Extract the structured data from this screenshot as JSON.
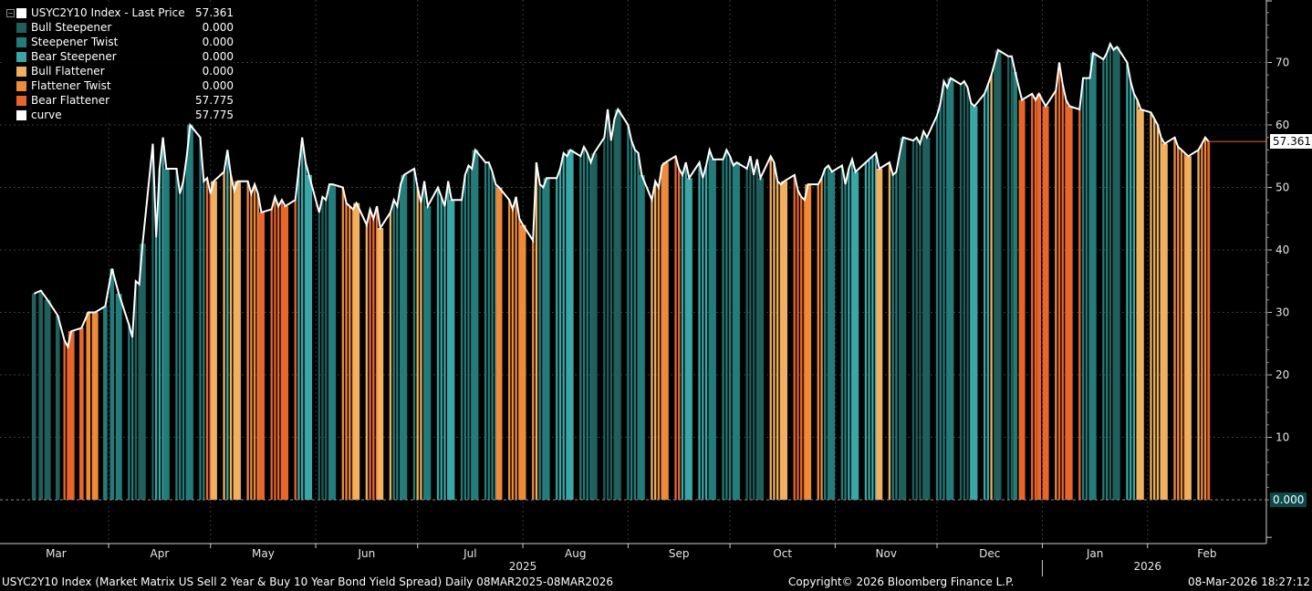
{
  "legend": {
    "title": "USYC2Y10 Index - Last Price",
    "title_value": "57.361",
    "items": [
      {
        "name": "Bull Steepener",
        "value": "0.000",
        "color": "#1f5f5c"
      },
      {
        "name": "Steepener Twist",
        "value": "0.000",
        "color": "#237c7a"
      },
      {
        "name": "Bear Steepener",
        "value": "0.000",
        "color": "#3aa6a6"
      },
      {
        "name": "Bull Flattener",
        "value": "0.000",
        "color": "#f0b060"
      },
      {
        "name": "Flattener Twist",
        "value": "0.000",
        "color": "#ee8a3a"
      },
      {
        "name": "Bear Flattener",
        "value": "57.775",
        "color": "#e8662a"
      },
      {
        "name": "curve",
        "value": "57.775",
        "color": "#ffffff"
      }
    ]
  },
  "price_tags": {
    "last": "57.361",
    "zero": "0.000"
  },
  "footer": {
    "left": "USYC2Y10 Index (Market Matrix US Sell 2 Year & Buy 10 Year Bond Yield Spread) Daily 08MAR2025-08MAR2026",
    "center": "Copyright© 2026 Bloomberg Finance L.P.",
    "right": "08-Mar-2026 18:27:12"
  },
  "chart_data": {
    "type": "bar",
    "ylim": [
      -7,
      80
    ],
    "y_ticks": [
      10,
      20,
      30,
      40,
      50,
      60,
      70
    ],
    "months": [
      "Mar",
      "Apr",
      "May",
      "Jun",
      "Jul",
      "Aug",
      "Sep",
      "Oct",
      "Nov",
      "Dec",
      "Jan",
      "Feb"
    ],
    "year_labels": [
      "2025",
      "2026"
    ],
    "regime_colors": {
      "A": "#1f5f5c",
      "B": "#237c7a",
      "C": "#3aa6a6",
      "D": "#f0b060",
      "E": "#ee8a3a",
      "F": "#e8662a"
    },
    "curve_points": [
      [
        "2025-03-10",
        33.0
      ],
      [
        "2025-03-12",
        33.5
      ],
      [
        "2025-03-14",
        32.0
      ],
      [
        "2025-03-17",
        29.5
      ],
      [
        "2025-03-19",
        25.5
      ],
      [
        "2025-03-20",
        24.5
      ],
      [
        "2025-03-21",
        27.0
      ],
      [
        "2025-03-24",
        27.5
      ],
      [
        "2025-03-26",
        30.0
      ],
      [
        "2025-03-28",
        30.0
      ],
      [
        "2025-03-31",
        31.0
      ],
      [
        "2025-04-02",
        37.0
      ],
      [
        "2025-04-04",
        33.0
      ],
      [
        "2025-04-07",
        28.0
      ],
      [
        "2025-04-08",
        26.0
      ],
      [
        "2025-04-09",
        35.0
      ],
      [
        "2025-04-10",
        34.5
      ],
      [
        "2025-04-11",
        41.0
      ],
      [
        "2025-04-14",
        57.0
      ],
      [
        "2025-04-15",
        42.0
      ],
      [
        "2025-04-16",
        53.0
      ],
      [
        "2025-04-17",
        58.0
      ],
      [
        "2025-04-18",
        53.0
      ],
      [
        "2025-04-21",
        53.0
      ],
      [
        "2025-04-22",
        49.0
      ],
      [
        "2025-04-23",
        51.0
      ],
      [
        "2025-04-24",
        55.0
      ],
      [
        "2025-04-25",
        60.0
      ],
      [
        "2025-04-28",
        58.0
      ],
      [
        "2025-04-29",
        51.0
      ],
      [
        "2025-04-30",
        51.5
      ],
      [
        "2025-05-01",
        49.0
      ],
      [
        "2025-05-02",
        51.0
      ],
      [
        "2025-05-05",
        52.5
      ],
      [
        "2025-05-06",
        56.0
      ],
      [
        "2025-05-07",
        52.0
      ],
      [
        "2025-05-08",
        49.5
      ],
      [
        "2025-05-09",
        51.0
      ],
      [
        "2025-05-12",
        51.0
      ],
      [
        "2025-05-13",
        49.0
      ],
      [
        "2025-05-14",
        50.5
      ],
      [
        "2025-05-15",
        49.0
      ],
      [
        "2025-05-16",
        46.0
      ],
      [
        "2025-05-19",
        46.5
      ],
      [
        "2025-05-20",
        48.5
      ],
      [
        "2025-05-21",
        47.0
      ],
      [
        "2025-05-22",
        48.0
      ],
      [
        "2025-05-23",
        47.0
      ],
      [
        "2025-05-26",
        48.0
      ],
      [
        "2025-05-27",
        53.0
      ],
      [
        "2025-05-28",
        58.0
      ],
      [
        "2025-05-29",
        54.0
      ],
      [
        "2025-05-30",
        52.0
      ],
      [
        "2025-06-02",
        46.0
      ],
      [
        "2025-06-03",
        48.5
      ],
      [
        "2025-06-04",
        48.0
      ],
      [
        "2025-06-05",
        50.5
      ],
      [
        "2025-06-06",
        50.5
      ],
      [
        "2025-06-09",
        50.0
      ],
      [
        "2025-06-10",
        47.5
      ],
      [
        "2025-06-11",
        47.0
      ],
      [
        "2025-06-12",
        46.5
      ],
      [
        "2025-06-13",
        47.5
      ],
      [
        "2025-06-16",
        44.0
      ],
      [
        "2025-06-17",
        46.5
      ],
      [
        "2025-06-18",
        45.0
      ],
      [
        "2025-06-19",
        47.0
      ],
      [
        "2025-06-20",
        43.5
      ],
      [
        "2025-06-23",
        46.0
      ],
      [
        "2025-06-24",
        48.0
      ],
      [
        "2025-06-25",
        47.0
      ],
      [
        "2025-06-26",
        50.5
      ],
      [
        "2025-06-27",
        52.0
      ],
      [
        "2025-06-30",
        53.0
      ],
      [
        "2025-07-01",
        50.0
      ],
      [
        "2025-07-02",
        47.5
      ],
      [
        "2025-07-03",
        51.0
      ],
      [
        "2025-07-04",
        47.0
      ],
      [
        "2025-07-07",
        50.0
      ],
      [
        "2025-07-08",
        48.5
      ],
      [
        "2025-07-09",
        47.0
      ],
      [
        "2025-07-10",
        51.0
      ],
      [
        "2025-07-11",
        48.0
      ],
      [
        "2025-07-14",
        48.0
      ],
      [
        "2025-07-15",
        52.0
      ],
      [
        "2025-07-16",
        53.5
      ],
      [
        "2025-07-17",
        53.0
      ],
      [
        "2025-07-18",
        56.0
      ],
      [
        "2025-07-21",
        54.0
      ],
      [
        "2025-07-22",
        54.0
      ],
      [
        "2025-07-23",
        52.5
      ],
      [
        "2025-07-24",
        50.5
      ],
      [
        "2025-07-25",
        50.0
      ],
      [
        "2025-07-28",
        48.0
      ],
      [
        "2025-07-29",
        46.5
      ],
      [
        "2025-07-30",
        48.5
      ],
      [
        "2025-07-31",
        45.0
      ],
      [
        "2025-08-01",
        44.0
      ],
      [
        "2025-08-04",
        41.5
      ],
      [
        "2025-08-05",
        54.0
      ],
      [
        "2025-08-06",
        50.5
      ],
      [
        "2025-08-07",
        50.0
      ],
      [
        "2025-08-08",
        51.5
      ],
      [
        "2025-08-11",
        51.5
      ],
      [
        "2025-08-12",
        53.0
      ],
      [
        "2025-08-13",
        55.5
      ],
      [
        "2025-08-14",
        55.0
      ],
      [
        "2025-08-15",
        56.0
      ],
      [
        "2025-08-18",
        55.0
      ],
      [
        "2025-08-19",
        56.5
      ],
      [
        "2025-08-20",
        55.5
      ],
      [
        "2025-08-21",
        54.0
      ],
      [
        "2025-08-22",
        55.5
      ],
      [
        "2025-08-25",
        58.0
      ],
      [
        "2025-08-26",
        62.5
      ],
      [
        "2025-08-27",
        57.5
      ],
      [
        "2025-08-28",
        61.0
      ],
      [
        "2025-08-29",
        62.5
      ],
      [
        "2025-09-01",
        60.0
      ],
      [
        "2025-09-02",
        57.5
      ],
      [
        "2025-09-03",
        56.0
      ],
      [
        "2025-09-04",
        55.5
      ],
      [
        "2025-09-05",
        52.0
      ],
      [
        "2025-09-08",
        48.0
      ],
      [
        "2025-09-09",
        51.0
      ],
      [
        "2025-09-10",
        50.0
      ],
      [
        "2025-09-11",
        53.5
      ],
      [
        "2025-09-12",
        54.0
      ],
      [
        "2025-09-15",
        55.0
      ],
      [
        "2025-09-16",
        53.0
      ],
      [
        "2025-09-17",
        52.0
      ],
      [
        "2025-09-18",
        54.0
      ],
      [
        "2025-09-19",
        51.5
      ],
      [
        "2025-09-22",
        54.0
      ],
      [
        "2025-09-23",
        51.5
      ],
      [
        "2025-09-24",
        53.5
      ],
      [
        "2025-09-25",
        56.0
      ],
      [
        "2025-09-26",
        54.5
      ],
      [
        "2025-09-29",
        54.5
      ],
      [
        "2025-09-30",
        56.0
      ],
      [
        "2025-10-01",
        55.0
      ],
      [
        "2025-10-02",
        53.5
      ],
      [
        "2025-10-03",
        54.0
      ],
      [
        "2025-10-06",
        53.0
      ],
      [
        "2025-10-07",
        55.0
      ],
      [
        "2025-10-08",
        52.0
      ],
      [
        "2025-10-09",
        54.5
      ],
      [
        "2025-10-10",
        51.5
      ],
      [
        "2025-10-13",
        55.0
      ],
      [
        "2025-10-14",
        54.0
      ],
      [
        "2025-10-15",
        51.0
      ],
      [
        "2025-10-16",
        50.5
      ],
      [
        "2025-10-17",
        51.0
      ],
      [
        "2025-10-20",
        52.0
      ],
      [
        "2025-10-21",
        49.5
      ],
      [
        "2025-10-22",
        48.5
      ],
      [
        "2025-10-23",
        48.0
      ],
      [
        "2025-10-24",
        50.5
      ],
      [
        "2025-10-27",
        50.5
      ],
      [
        "2025-10-28",
        51.5
      ],
      [
        "2025-10-29",
        53.0
      ],
      [
        "2025-10-30",
        53.5
      ],
      [
        "2025-10-31",
        52.5
      ],
      [
        "2025-11-03",
        53.5
      ],
      [
        "2025-11-04",
        50.5
      ],
      [
        "2025-11-05",
        53.0
      ],
      [
        "2025-11-06",
        54.5
      ],
      [
        "2025-11-07",
        52.5
      ],
      [
        "2025-11-10",
        54.0
      ],
      [
        "2025-11-11",
        54.5
      ],
      [
        "2025-11-12",
        55.0
      ],
      [
        "2025-11-13",
        55.5
      ],
      [
        "2025-11-14",
        53.0
      ],
      [
        "2025-11-17",
        54.0
      ],
      [
        "2025-11-18",
        52.0
      ],
      [
        "2025-11-19",
        52.5
      ],
      [
        "2025-11-20",
        55.5
      ],
      [
        "2025-11-21",
        58.0
      ],
      [
        "2025-11-24",
        57.5
      ],
      [
        "2025-11-25",
        58.0
      ],
      [
        "2025-11-26",
        57.0
      ],
      [
        "2025-11-27",
        59.0
      ],
      [
        "2025-11-28",
        58.0
      ],
      [
        "2025-12-01",
        61.5
      ],
      [
        "2025-12-02",
        63.5
      ],
      [
        "2025-12-03",
        67.0
      ],
      [
        "2025-12-04",
        66.0
      ],
      [
        "2025-12-05",
        67.5
      ],
      [
        "2025-12-08",
        66.5
      ],
      [
        "2025-12-09",
        67.0
      ],
      [
        "2025-12-10",
        66.0
      ],
      [
        "2025-12-11",
        63.5
      ],
      [
        "2025-12-12",
        63.0
      ],
      [
        "2025-12-15",
        65.0
      ],
      [
        "2025-12-16",
        66.5
      ],
      [
        "2025-12-17",
        68.0
      ],
      [
        "2025-12-18",
        70.0
      ],
      [
        "2025-12-19",
        72.0
      ],
      [
        "2025-12-22",
        71.0
      ],
      [
        "2025-12-23",
        71.0
      ],
      [
        "2025-12-24",
        68.5
      ],
      [
        "2025-12-26",
        64.0
      ],
      [
        "2025-12-29",
        65.0
      ],
      [
        "2025-12-30",
        64.0
      ],
      [
        "2025-12-31",
        65.0
      ],
      [
        "2026-01-02",
        63.0
      ],
      [
        "2026-01-05",
        65.5
      ],
      [
        "2026-01-06",
        70.0
      ],
      [
        "2026-01-07",
        66.5
      ],
      [
        "2026-01-08",
        64.0
      ],
      [
        "2026-01-09",
        63.0
      ],
      [
        "2026-01-12",
        62.5
      ],
      [
        "2026-01-13",
        67.5
      ],
      [
        "2026-01-14",
        67.5
      ],
      [
        "2026-01-15",
        67.5
      ],
      [
        "2026-01-16",
        71.5
      ],
      [
        "2026-01-19",
        70.5
      ],
      [
        "2026-01-20",
        71.5
      ],
      [
        "2026-01-21",
        73.0
      ],
      [
        "2026-01-22",
        72.0
      ],
      [
        "2026-01-23",
        72.5
      ],
      [
        "2026-01-26",
        70.0
      ],
      [
        "2026-01-27",
        67.0
      ],
      [
        "2026-01-28",
        65.0
      ],
      [
        "2026-01-29",
        64.0
      ],
      [
        "2026-01-30",
        62.5
      ],
      [
        "2026-02-02",
        62.0
      ],
      [
        "2026-02-03",
        61.0
      ],
      [
        "2026-02-04",
        60.0
      ],
      [
        "2026-02-05",
        58.0
      ],
      [
        "2026-02-06",
        57.0
      ],
      [
        "2026-02-09",
        58.0
      ],
      [
        "2026-02-10",
        56.5
      ],
      [
        "2026-02-11",
        56.0
      ],
      [
        "2026-02-12",
        55.5
      ],
      [
        "2026-02-13",
        55.0
      ],
      [
        "2026-02-16",
        56.0
      ],
      [
        "2026-02-17",
        57.0
      ],
      [
        "2026-02-18",
        58.0
      ],
      [
        "2026-02-19",
        57.361
      ]
    ],
    "regimes": [
      [
        "2025-03-10",
        "A"
      ],
      [
        "2025-03-19",
        "F"
      ],
      [
        "2025-03-26",
        "E"
      ],
      [
        "2025-03-31",
        "B"
      ],
      [
        "2025-04-09",
        "A"
      ],
      [
        "2025-04-15",
        "C"
      ],
      [
        "2025-04-18",
        "B"
      ],
      [
        "2025-04-30",
        "F"
      ],
      [
        "2025-05-02",
        "D"
      ],
      [
        "2025-05-06",
        "C"
      ],
      [
        "2025-05-07",
        "D"
      ],
      [
        "2025-05-12",
        "E"
      ],
      [
        "2025-05-16",
        "F"
      ],
      [
        "2025-05-27",
        "C"
      ],
      [
        "2025-06-02",
        "A"
      ],
      [
        "2025-06-05",
        "B"
      ],
      [
        "2025-06-09",
        "E"
      ],
      [
        "2025-06-13",
        "D"
      ],
      [
        "2025-06-17",
        "F"
      ],
      [
        "2025-06-20",
        "D"
      ],
      [
        "2025-06-24",
        "B"
      ],
      [
        "2025-07-01",
        "D"
      ],
      [
        "2025-07-03",
        "B"
      ],
      [
        "2025-07-07",
        "C"
      ],
      [
        "2025-07-14",
        "B"
      ],
      [
        "2025-07-25",
        "E"
      ],
      [
        "2025-08-05",
        "D"
      ],
      [
        "2025-08-06",
        "B"
      ],
      [
        "2025-08-11",
        "C"
      ],
      [
        "2025-08-18",
        "B"
      ],
      [
        "2025-08-22",
        "A"
      ],
      [
        "2025-09-01",
        "B"
      ],
      [
        "2025-09-08",
        "D"
      ],
      [
        "2025-09-10",
        "E"
      ],
      [
        "2025-09-15",
        "F"
      ],
      [
        "2025-09-17",
        "C"
      ],
      [
        "2025-09-25",
        "B"
      ],
      [
        "2025-10-06",
        "A"
      ],
      [
        "2025-10-13",
        "D"
      ],
      [
        "2025-10-20",
        "F"
      ],
      [
        "2025-10-24",
        "E"
      ],
      [
        "2025-10-29",
        "B"
      ],
      [
        "2025-11-05",
        "C"
      ],
      [
        "2025-11-14",
        "D"
      ],
      [
        "2025-11-18",
        "B"
      ],
      [
        "2025-11-20",
        "A"
      ],
      [
        "2025-12-01",
        "B"
      ],
      [
        "2025-12-08",
        "A"
      ],
      [
        "2025-12-11",
        "C"
      ],
      [
        "2025-12-17",
        "D"
      ],
      [
        "2025-12-18",
        "A"
      ],
      [
        "2025-12-24",
        "B"
      ],
      [
        "2025-12-26",
        "F"
      ],
      [
        "2026-01-05",
        "E"
      ],
      [
        "2026-01-06",
        "F"
      ],
      [
        "2026-01-13",
        "B"
      ],
      [
        "2026-01-21",
        "A"
      ],
      [
        "2026-01-26",
        "C"
      ],
      [
        "2026-01-29",
        "D"
      ],
      [
        "2026-02-09",
        "E"
      ],
      [
        "2026-02-13",
        "D"
      ],
      [
        "2026-02-17",
        "E"
      ],
      [
        "2026-02-19",
        "F"
      ]
    ]
  }
}
